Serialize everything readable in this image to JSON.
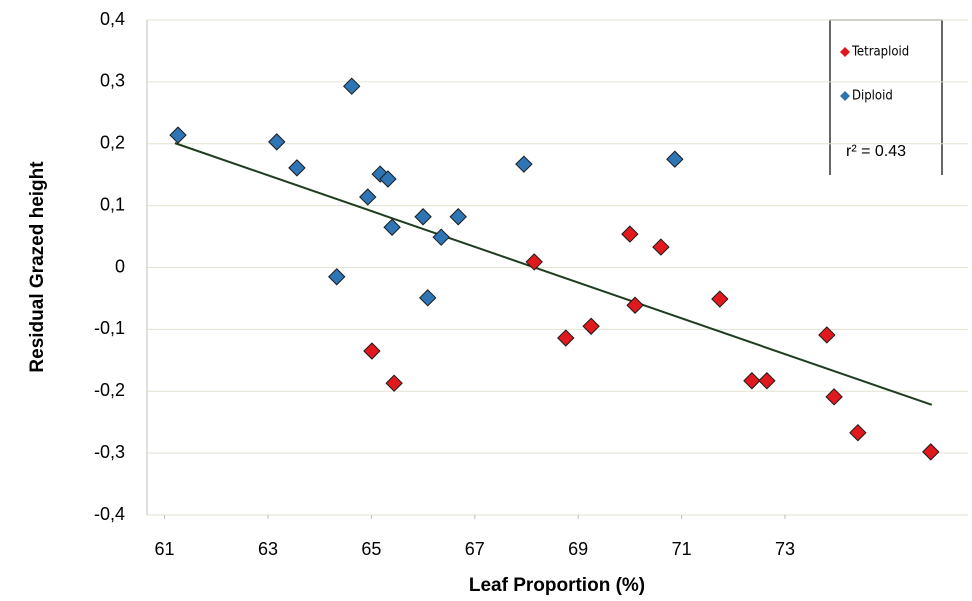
{
  "chart_data": {
    "type": "scatter",
    "x_label": "Leaf Proportion (%)",
    "y_label": "Residual Grazed height",
    "xlim": [
      60.66,
      76.54
    ],
    "ylim": [
      -0.4,
      0.4
    ],
    "xticks": [
      61,
      63,
      65,
      67,
      69,
      71,
      73
    ],
    "yticks": [
      {
        "value": -0.4,
        "label": "-0,4"
      },
      {
        "value": -0.3,
        "label": "-0,3"
      },
      {
        "value": -0.2,
        "label": "-0,2"
      },
      {
        "value": -0.1,
        "label": "-0,1"
      },
      0,
      {
        "value": 0.1,
        "label": "0,1"
      },
      {
        "value": 0.2,
        "label": "0,2"
      },
      {
        "value": 0.3,
        "label": "0,3"
      },
      {
        "value": 0.4,
        "label": "0,4"
      }
    ],
    "grid": true,
    "legend": "upper right",
    "series": [
      {
        "name": "Tetraploid",
        "color": "#e0191e",
        "x": [
          68.15,
          70.0,
          70.6,
          70.1,
          68.76,
          69.25,
          65.01,
          65.44,
          71.74,
          72.36,
          72.65,
          73.81,
          73.95,
          74.41,
          75.82
        ],
        "values": [
          0.009,
          0.054,
          0.033,
          -0.061,
          -0.114,
          -0.095,
          -0.135,
          -0.187,
          -0.051,
          -0.183,
          -0.183,
          -0.109,
          -0.209,
          -0.267,
          -0.298
        ]
      },
      {
        "name": "Diploid",
        "color": "#2e75b6",
        "x": [
          61.26,
          63.17,
          63.56,
          64.62,
          65.17,
          65.32,
          64.93,
          65.4,
          64.33,
          66.0,
          66.68,
          66.35,
          66.09,
          67.95,
          70.87
        ],
        "values": [
          0.214,
          0.203,
          0.161,
          0.293,
          0.151,
          0.143,
          0.114,
          0.065,
          -0.015,
          0.082,
          0.082,
          0.049,
          -0.049,
          0.167,
          0.175
        ]
      }
    ],
    "trendline": {
      "color": "#1f3d1f",
      "x": [
        61.2,
        75.84
      ],
      "values": [
        0.201,
        -0.222
      ]
    },
    "annotation": "r² = 0.43"
  }
}
